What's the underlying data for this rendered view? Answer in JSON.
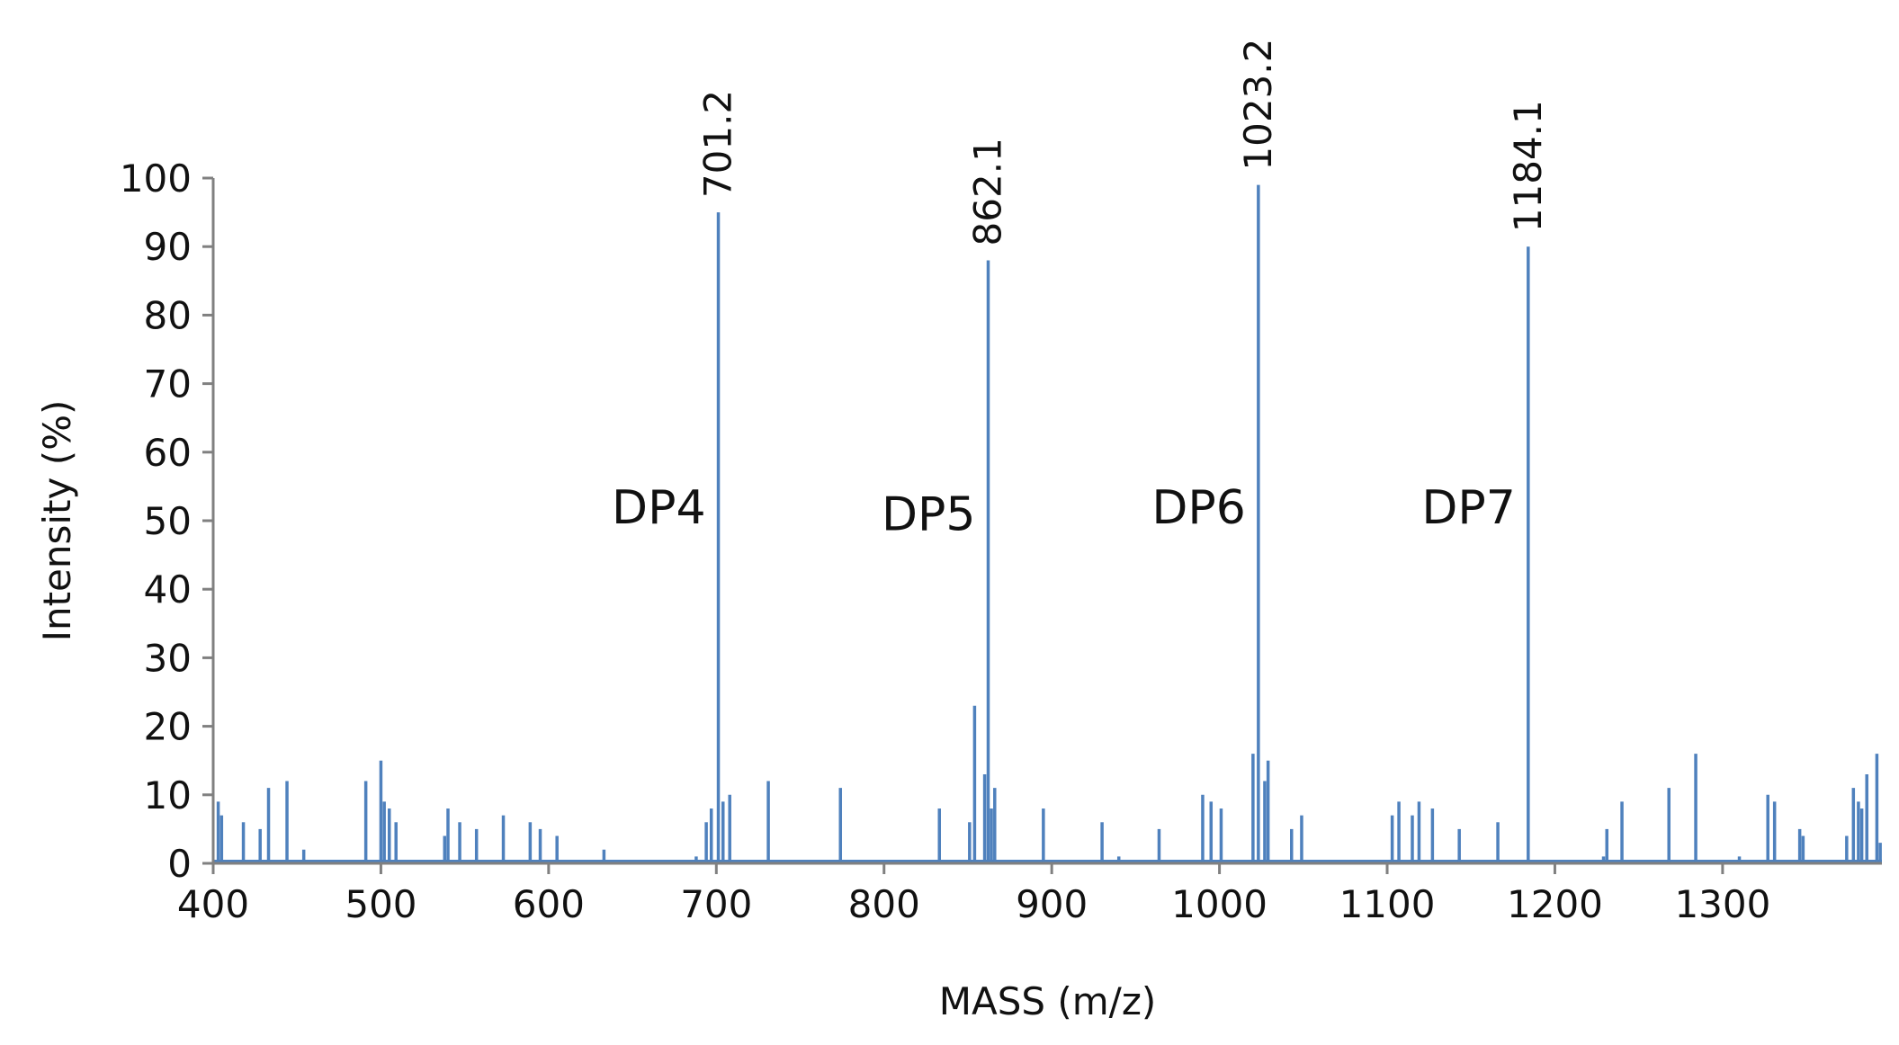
{
  "chart_data": {
    "type": "bar",
    "title": "",
    "xlabel": "MASS (m/z)",
    "ylabel": "Intensity (%)",
    "xlim": [
      400,
      1395
    ],
    "ylim": [
      0,
      100
    ],
    "x_ticks": [
      400,
      500,
      600,
      700,
      800,
      900,
      1000,
      1100,
      1200,
      1300
    ],
    "y_ticks": [
      0,
      10,
      20,
      30,
      40,
      50,
      60,
      70,
      80,
      90,
      100
    ],
    "grid": false,
    "legend": "none",
    "bar_color": "#4f81bd",
    "axis_color": "#808080",
    "peaks": [
      {
        "x": 403,
        "y": 9
      },
      {
        "x": 405,
        "y": 7
      },
      {
        "x": 418,
        "y": 6
      },
      {
        "x": 428,
        "y": 5
      },
      {
        "x": 433,
        "y": 11
      },
      {
        "x": 444,
        "y": 12
      },
      {
        "x": 454,
        "y": 2
      },
      {
        "x": 491,
        "y": 12
      },
      {
        "x": 500,
        "y": 15
      },
      {
        "x": 502,
        "y": 9
      },
      {
        "x": 505,
        "y": 8
      },
      {
        "x": 509,
        "y": 6
      },
      {
        "x": 538,
        "y": 4
      },
      {
        "x": 540,
        "y": 8
      },
      {
        "x": 547,
        "y": 6
      },
      {
        "x": 557,
        "y": 5
      },
      {
        "x": 573,
        "y": 7
      },
      {
        "x": 589,
        "y": 6
      },
      {
        "x": 595,
        "y": 5
      },
      {
        "x": 605,
        "y": 4
      },
      {
        "x": 633,
        "y": 2
      },
      {
        "x": 688,
        "y": 1
      },
      {
        "x": 694,
        "y": 6
      },
      {
        "x": 697,
        "y": 8
      },
      {
        "x": 701.2,
        "y": 95
      },
      {
        "x": 704,
        "y": 9
      },
      {
        "x": 708,
        "y": 10
      },
      {
        "x": 731,
        "y": 12
      },
      {
        "x": 774,
        "y": 11
      },
      {
        "x": 833,
        "y": 8
      },
      {
        "x": 851,
        "y": 6
      },
      {
        "x": 854,
        "y": 23
      },
      {
        "x": 860,
        "y": 13
      },
      {
        "x": 862.1,
        "y": 88
      },
      {
        "x": 864,
        "y": 8
      },
      {
        "x": 866,
        "y": 11
      },
      {
        "x": 895,
        "y": 8
      },
      {
        "x": 930,
        "y": 6
      },
      {
        "x": 940,
        "y": 1
      },
      {
        "x": 964,
        "y": 5
      },
      {
        "x": 990,
        "y": 10
      },
      {
        "x": 995,
        "y": 9
      },
      {
        "x": 1001,
        "y": 8
      },
      {
        "x": 1020,
        "y": 16
      },
      {
        "x": 1023.2,
        "y": 99
      },
      {
        "x": 1027,
        "y": 12
      },
      {
        "x": 1029,
        "y": 15
      },
      {
        "x": 1043,
        "y": 5
      },
      {
        "x": 1049,
        "y": 7
      },
      {
        "x": 1103,
        "y": 7
      },
      {
        "x": 1107,
        "y": 9
      },
      {
        "x": 1115,
        "y": 7
      },
      {
        "x": 1119,
        "y": 9
      },
      {
        "x": 1127,
        "y": 8
      },
      {
        "x": 1143,
        "y": 5
      },
      {
        "x": 1166,
        "y": 6
      },
      {
        "x": 1184.1,
        "y": 90
      },
      {
        "x": 1229,
        "y": 1
      },
      {
        "x": 1231,
        "y": 5
      },
      {
        "x": 1240,
        "y": 9
      },
      {
        "x": 1268,
        "y": 11
      },
      {
        "x": 1284,
        "y": 16
      },
      {
        "x": 1310,
        "y": 1
      },
      {
        "x": 1327,
        "y": 10
      },
      {
        "x": 1331,
        "y": 9
      },
      {
        "x": 1346,
        "y": 5
      },
      {
        "x": 1348,
        "y": 4
      },
      {
        "x": 1374,
        "y": 4
      },
      {
        "x": 1378,
        "y": 11
      },
      {
        "x": 1381,
        "y": 9
      },
      {
        "x": 1383,
        "y": 8
      },
      {
        "x": 1386,
        "y": 13
      },
      {
        "x": 1392,
        "y": 16
      },
      {
        "x": 1394,
        "y": 3
      }
    ],
    "peak_labels": [
      {
        "x": 701.2,
        "y": 95,
        "text": "701.2"
      },
      {
        "x": 862.1,
        "y": 88,
        "text": "862.1"
      },
      {
        "x": 1023.2,
        "y": 99,
        "text": "1023.2"
      },
      {
        "x": 1184.1,
        "y": 90,
        "text": "1184.1"
      }
    ],
    "annotations": [
      {
        "x": 701.2,
        "y": 52,
        "text": "DP4"
      },
      {
        "x": 862.1,
        "y": 51,
        "text": "DP5"
      },
      {
        "x": 1023.2,
        "y": 52,
        "text": "DP6"
      },
      {
        "x": 1184.1,
        "y": 52,
        "text": "DP7"
      }
    ]
  }
}
